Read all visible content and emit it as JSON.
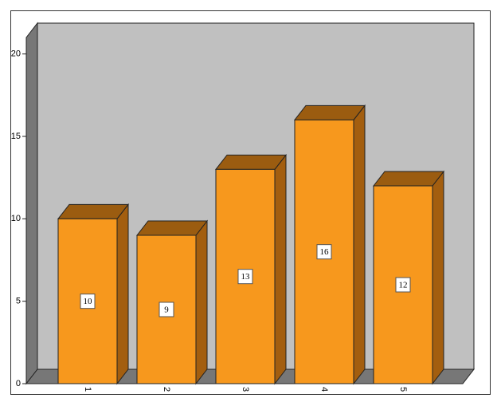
{
  "chart_data": {
    "type": "bar3d",
    "categories": [
      "1",
      "2",
      "3",
      "4",
      "5"
    ],
    "values": [
      10,
      9,
      13,
      16,
      12
    ],
    "color": "#f7981d",
    "top_color": "#9b5c10",
    "side_color": "#a35e0f",
    "wall_color": "#c0c0c0",
    "ylim": [
      0,
      21
    ],
    "yticks": [
      0,
      5,
      10,
      15,
      20
    ]
  }
}
